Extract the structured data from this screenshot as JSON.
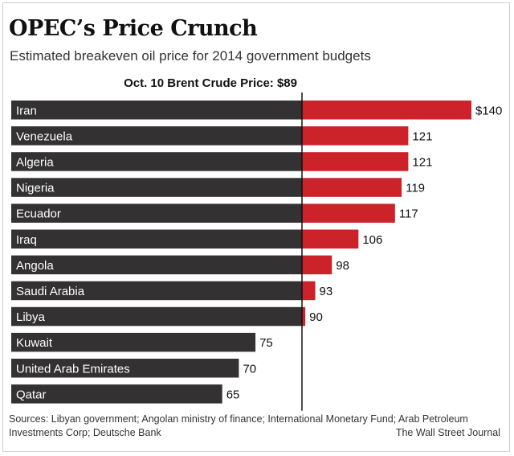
{
  "header": {
    "title": "OPEC’s Price Crunch",
    "subtitle": "Estimated breakeven oil price for 2014 government budgets"
  },
  "reference": {
    "label": "Oct. 10 Brent Crude Price: $89",
    "value": 89
  },
  "chart_data": {
    "type": "bar",
    "orientation": "horizontal",
    "title": "OPEC’s Price Crunch",
    "subtitle": "Estimated breakeven oil price for 2014 government budgets",
    "categories": [
      "Iran",
      "Venezuela",
      "Algeria",
      "Nigeria",
      "Ecuador",
      "Iraq",
      "Angola",
      "Saudi Arabia",
      "Libya",
      "Kuwait",
      "United Arab Emirates",
      "Qatar"
    ],
    "values": [
      140,
      121,
      121,
      119,
      117,
      106,
      98,
      93,
      90,
      75,
      70,
      65
    ],
    "value_labels": [
      "$140",
      "121",
      "121",
      "119",
      "117",
      "106",
      "98",
      "93",
      "90",
      "75",
      "70",
      "65"
    ],
    "reference_line": 89,
    "colors": {
      "below_reference": "#333132",
      "above_reference": "#cc2229",
      "bar_text": "#ffffff",
      "reference_line": "#111111"
    },
    "xlim": [
      0,
      140
    ],
    "grid": false
  },
  "footer": {
    "sources": "Sources: Libyan government; Angolan ministry of finance; International Monetary Fund; Arab Petroleum Investments Corp; Deutsche Bank",
    "credit": "The Wall Street Journal"
  }
}
